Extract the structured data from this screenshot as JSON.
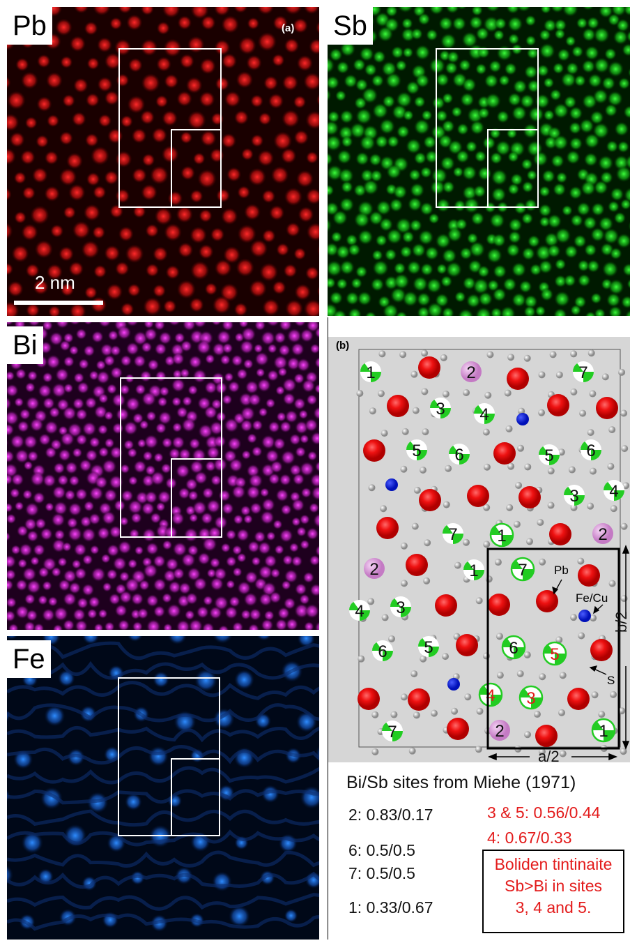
{
  "panels": {
    "pb": {
      "label": "Pb",
      "color": "#e21b1b"
    },
    "sb": {
      "label": "Sb",
      "color": "#20d428"
    },
    "bi": {
      "label": "Bi",
      "color": "#e029e0"
    },
    "fe": {
      "label": "Fe",
      "color": "#1a75e0"
    }
  },
  "panel_letters": {
    "a": "(a)",
    "b": "(b)"
  },
  "scalebar": {
    "label": "2 nm"
  },
  "schematic": {
    "atom_labels": {
      "pb": "Pb",
      "fecu": "Fe/Cu",
      "s": "S"
    },
    "axis_a": "a/2",
    "axis_b": "b/2"
  },
  "legend": {
    "title": "Bi/Sb sites from Miehe (1971)",
    "black_entries": [
      "2: 0.83/0.17",
      "6: 0.5/0.5",
      "7: 0.5/0.5",
      "1: 0.33/0.67"
    ],
    "red_entries": [
      "3 & 5: 0.56/0.44",
      "4: 0.67/0.33"
    ],
    "box_lines": [
      "Boliden tintinaite",
      "Sb>Bi in sites",
      "3, 4 and 5."
    ]
  },
  "colors": {
    "pb_atom": "#ee1111",
    "sb_site": "#22cc22",
    "bi_site": "#dd99dd",
    "fe_atom": "#1020dd",
    "s_atom": "#aaaaaa",
    "highlight": "#e31b1b"
  }
}
